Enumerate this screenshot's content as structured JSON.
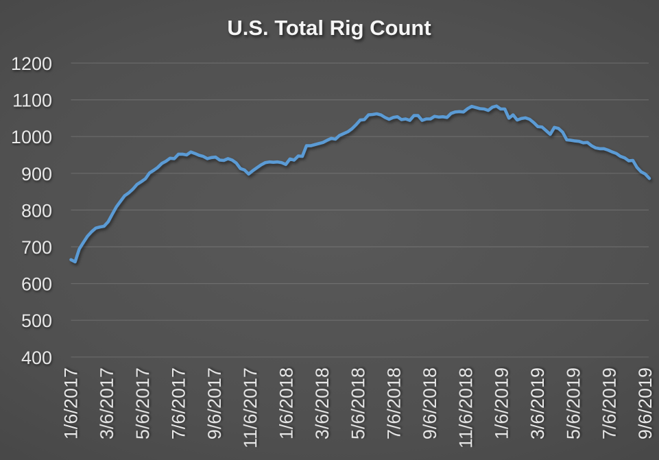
{
  "chart_data": {
    "type": "line",
    "title": "U.S. Total Rig Count",
    "xlabel": "",
    "ylabel": "",
    "ylim": [
      400,
      1200
    ],
    "y_ticks": [
      400,
      500,
      600,
      700,
      800,
      900,
      1000,
      1100,
      1200
    ],
    "x_tick_labels": [
      "1/6/2017",
      "3/6/2017",
      "5/6/2017",
      "7/6/2017",
      "9/6/2017",
      "11/6/2017",
      "1/6/2018",
      "3/6/2018",
      "5/6/2018",
      "7/6/2018",
      "9/6/2018",
      "11/6/2018",
      "1/6/2019",
      "3/6/2019",
      "5/6/2019",
      "7/6/2019",
      "9/6/2019"
    ],
    "grid": "horizontal",
    "legend_position": "none",
    "line_color": "#5B9BD5",
    "grid_color": "rgba(255,255,255,0.15)",
    "tick_text_color": "#e8e8e8",
    "title_color": "#f5f5f5",
    "weeks_between_first_and_last_tick": 139,
    "series": [
      {
        "name": "U.S. Total Rig Count",
        "frequency": "weekly",
        "first_point_label": "1/6/2017",
        "values": [
          665,
          659,
          694,
          712,
          729,
          741,
          751,
          754,
          756,
          768,
          789,
          809,
          824,
          839,
          847,
          857,
          870,
          877,
          885,
          901,
          908,
          916,
          927,
          933,
          941,
          940,
          952,
          952,
          950,
          958,
          954,
          949,
          946,
          940,
          943,
          944,
          936,
          935,
          940,
          936,
          928,
          913,
          909,
          898,
          907,
          915,
          923,
          929,
          931,
          930,
          931,
          929,
          924,
          939,
          936,
          947,
          946,
          975,
          975,
          978,
          981,
          984,
          990,
          995,
          993,
          1003,
          1008,
          1013,
          1021,
          1032,
          1045,
          1046,
          1059,
          1060,
          1062,
          1059,
          1052,
          1047,
          1052,
          1054,
          1046,
          1048,
          1044,
          1057,
          1057,
          1044,
          1048,
          1048,
          1055,
          1053,
          1054,
          1052,
          1063,
          1067,
          1068,
          1067,
          1076,
          1082,
          1079,
          1076,
          1075,
          1071,
          1080,
          1083,
          1075,
          1075,
          1050,
          1059,
          1045,
          1049,
          1051,
          1047,
          1038,
          1027,
          1026,
          1016,
          1006,
          1025,
          1022,
          1012,
          991,
          990,
          988,
          987,
          983,
          984,
          975,
          969,
          967,
          967,
          963,
          958,
          954,
          946,
          942,
          934,
          935,
          916,
          904,
          898,
          886
        ]
      }
    ]
  }
}
